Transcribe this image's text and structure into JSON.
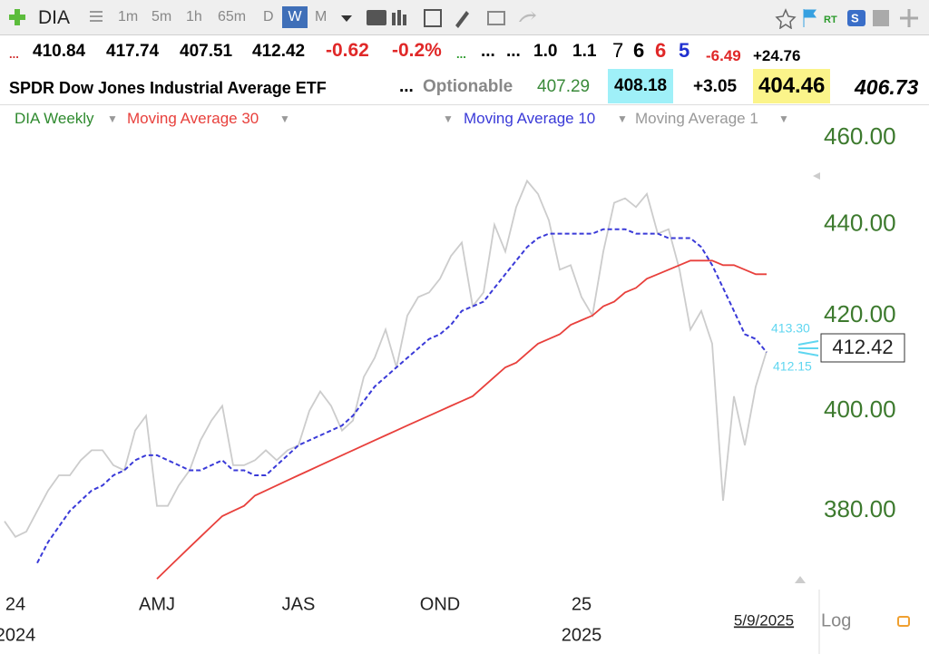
{
  "header": {
    "symbol": "DIA",
    "timeframes": [
      "1m",
      "5m",
      "1h",
      "65m",
      "D",
      "W",
      "M"
    ],
    "quote": [
      "...",
      "410.84",
      "417.74",
      "407.51",
      "412.42",
      "-0.62",
      "-0.2%",
      "...",
      "...",
      "...",
      "1.0",
      "1.1",
      "7",
      "6",
      "6",
      "5",
      "-6.49",
      "+24.76"
    ],
    "name": "SPDR Dow Jones Industrial Average ETF",
    "details": [
      "...",
      "Optionable",
      "407.29",
      "408.18",
      "+3.05",
      "404.46",
      "406.73"
    ]
  },
  "chart_data": {
    "type": "line",
    "log_scale": true,
    "categories": [
      null,
      "24",
      null,
      null,
      null,
      null,
      null,
      null,
      null,
      null,
      null,
      null,
      null,
      null,
      "AMJ",
      null,
      null,
      null,
      null,
      null,
      null,
      null,
      null,
      null,
      null,
      null,
      null,
      "JAS",
      null,
      null,
      null,
      null,
      null,
      null,
      null,
      null,
      null,
      null,
      null,
      null,
      "OND",
      null,
      null,
      null,
      null,
      null,
      null,
      null,
      null,
      null,
      null,
      null,
      null,
      "25",
      null,
      null,
      null,
      null,
      null,
      null,
      null,
      null,
      null,
      null,
      null,
      null,
      null,
      null,
      null,
      null,
      null
    ],
    "year_labels": [
      null,
      "2024",
      null,
      null,
      null,
      null,
      null,
      null,
      null,
      null,
      null,
      null,
      null,
      null,
      null,
      null,
      null,
      null,
      null,
      null,
      null,
      null,
      null,
      null,
      null,
      null,
      null,
      null,
      null,
      null,
      null,
      null,
      null,
      null,
      null,
      null,
      null,
      null,
      null,
      null,
      null,
      null,
      null,
      null,
      null,
      null,
      null,
      null,
      null,
      null,
      null,
      null,
      null,
      "2025",
      null,
      null,
      null,
      null,
      null,
      null,
      null,
      null,
      null,
      null,
      null,
      null,
      null,
      null,
      null,
      null,
      null
    ],
    "series": [
      {
        "name": "DIA Weekly",
        "color": "#cccccc",
        "dashed": false,
        "values": [
          378,
          375,
          376,
          380,
          384,
          387,
          387,
          390,
          392,
          392,
          389,
          388,
          396,
          399,
          381,
          381,
          385,
          388,
          394,
          398,
          401,
          389,
          389,
          390,
          392,
          390,
          392,
          393,
          400,
          404,
          401,
          396,
          398,
          407,
          411,
          417,
          409,
          420,
          424,
          425,
          428,
          433,
          436,
          422,
          425,
          440,
          434,
          444,
          450,
          447,
          441,
          430,
          431,
          424,
          420,
          434,
          445,
          446,
          444,
          447,
          438,
          439,
          430,
          417,
          421,
          414,
          382,
          403,
          393,
          405,
          412.42
        ]
      },
      {
        "name": "Moving Average 30",
        "color": "#e8403c",
        "dashed": false,
        "values": [
          null,
          null,
          null,
          null,
          null,
          null,
          null,
          null,
          null,
          null,
          null,
          null,
          null,
          null,
          367,
          369,
          371,
          373,
          375,
          377,
          379,
          380,
          381,
          383,
          384,
          385,
          386,
          387,
          388,
          389,
          390,
          391,
          392,
          393,
          394,
          395,
          396,
          397,
          398,
          399,
          400,
          401,
          402,
          403,
          405,
          407,
          409,
          410,
          412,
          414,
          415,
          416,
          418,
          419,
          420,
          422,
          423,
          425,
          426,
          428,
          429,
          430,
          431,
          432,
          432,
          432,
          431,
          431,
          430,
          429,
          429
        ]
      },
      {
        "name": "Moving Average 10",
        "color": "#3a3ad8",
        "dashed": true,
        "values": [
          null,
          null,
          null,
          370,
          374,
          377,
          380,
          382,
          384,
          385,
          387,
          388,
          390,
          391,
          391,
          390,
          389,
          388,
          388,
          389,
          390,
          388,
          388,
          387,
          387,
          389,
          391,
          393,
          394,
          395,
          396,
          397,
          399,
          402,
          405,
          407,
          409,
          411,
          413,
          415,
          416,
          418,
          421,
          422,
          423,
          426,
          429,
          432,
          435,
          437,
          438,
          438,
          438,
          438,
          438,
          439,
          439,
          439,
          438,
          438,
          438,
          437,
          437,
          437,
          435,
          431,
          426,
          421,
          416,
          415,
          412.15
        ]
      }
    ],
    "extra_legend": [
      "Moving Average 1"
    ],
    "price_tags": [
      "413.30",
      "412.15"
    ],
    "last_label": "412.42",
    "date_label": "5/9/2025",
    "scale_label": "Log",
    "ylim": [
      365,
      468
    ],
    "yticks": [
      {
        "value": 380,
        "label": "380.00"
      },
      {
        "value": 400,
        "label": "400.00"
      },
      {
        "value": 420,
        "label": "420.00"
      },
      {
        "value": 440,
        "label": "440.00"
      },
      {
        "value": 460,
        "label": "460.00"
      }
    ]
  }
}
